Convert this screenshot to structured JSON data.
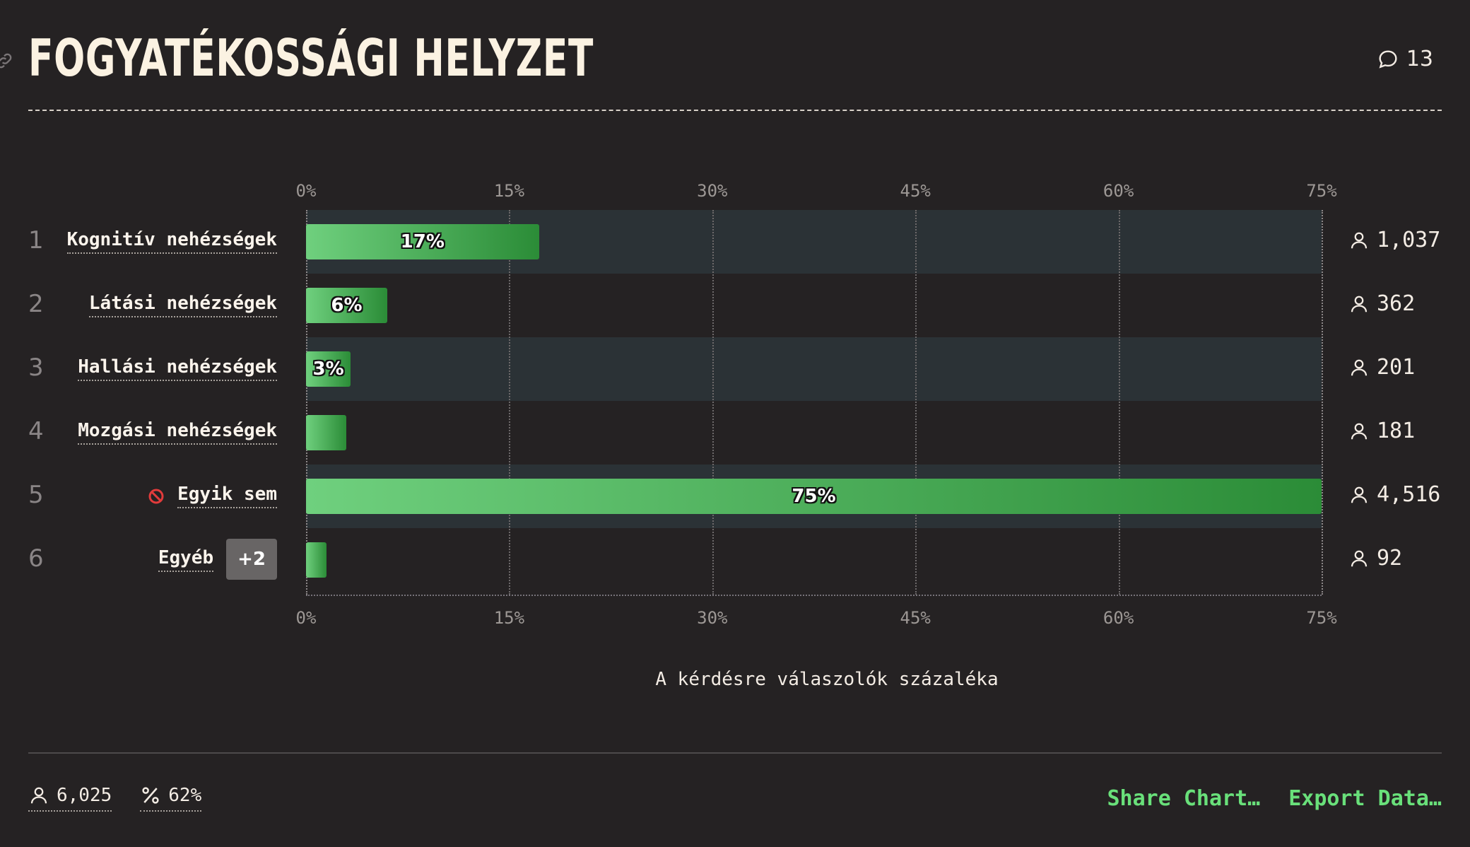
{
  "title": "FOGYATÉKOSSÁGI HELYZET",
  "comments_count": "13",
  "chart_data": {
    "type": "bar",
    "orientation": "horizontal",
    "xlim": [
      0,
      75
    ],
    "ticks": [
      "0%",
      "15%",
      "30%",
      "45%",
      "60%",
      "75%"
    ],
    "xlabel": "A kérdésre válaszolók százaléka",
    "grid": true,
    "categories": [
      "Kognitív nehézségek",
      "Látási nehézségek",
      "Hallási nehézségek",
      "Mozgási nehézségek",
      "Egyik sem",
      "Egyéb"
    ],
    "ranks": [
      "1",
      "2",
      "3",
      "4",
      "5",
      "6"
    ],
    "values": [
      17.2,
      6.0,
      3.3,
      3.0,
      75.0,
      1.5
    ],
    "value_labels": [
      "17%",
      "6%",
      "3%",
      "",
      "75%",
      ""
    ],
    "counts": [
      "1,037",
      "362",
      "201",
      "181",
      "4,516",
      "92"
    ],
    "more_badge": "+2",
    "colors": {
      "bar_start": "#6fd07e",
      "bar_end": "#2b8c37",
      "band": "#2b3236"
    }
  },
  "footer": {
    "respondents": "6,025",
    "percent": "62%",
    "share_label": "Share Chart…",
    "export_label": "Export Data…"
  }
}
